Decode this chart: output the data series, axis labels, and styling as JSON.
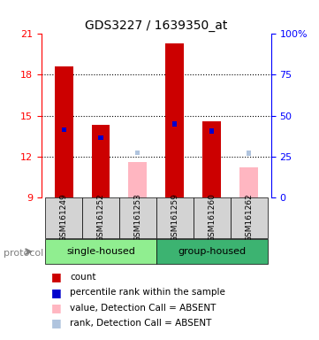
{
  "title": "GDS3227 / 1639350_at",
  "samples": [
    "GSM161249",
    "GSM161252",
    "GSM161253",
    "GSM161259",
    "GSM161260",
    "GSM161262"
  ],
  "groups": [
    {
      "name": "single-housed",
      "samples": [
        "GSM161249",
        "GSM161252",
        "GSM161253"
      ],
      "color": "#90EE90"
    },
    {
      "name": "group-housed",
      "samples": [
        "GSM161259",
        "GSM161260",
        "GSM161262"
      ],
      "color": "#3CB371"
    }
  ],
  "ylim_left": [
    9,
    21
  ],
  "ylim_right": [
    0,
    100
  ],
  "yticks_left": [
    9,
    12,
    15,
    18,
    21
  ],
  "yticks_right": [
    0,
    25,
    50,
    75,
    100
  ],
  "bar_data": [
    {
      "sample": "GSM161249",
      "value": 18.6,
      "rank": 13.8,
      "absent": false
    },
    {
      "sample": "GSM161252",
      "value": 14.35,
      "rank": 13.2,
      "absent": false
    },
    {
      "sample": "GSM161253",
      "value": 11.6,
      "rank": 12.1,
      "absent": true
    },
    {
      "sample": "GSM161259",
      "value": 20.3,
      "rank": 14.2,
      "absent": false
    },
    {
      "sample": "GSM161260",
      "value": 14.6,
      "rank": 13.7,
      "absent": false
    },
    {
      "sample": "GSM161262",
      "value": 11.2,
      "rank": 12.05,
      "absent": true
    }
  ],
  "bar_bottom": 9,
  "bar_width": 0.5,
  "color_present_value": "#CC0000",
  "color_present_rank": "#0000CC",
  "color_absent_value": "#FFB6C1",
  "color_absent_rank": "#B0C4DE",
  "legend_items": [
    {
      "color": "#CC0000",
      "label": "count",
      "marker": "s"
    },
    {
      "color": "#0000CC",
      "label": "percentile rank within the sample",
      "marker": "s"
    },
    {
      "color": "#FFB6C1",
      "label": "value, Detection Call = ABSENT",
      "marker": "s"
    },
    {
      "color": "#B0C4DE",
      "label": "rank, Detection Call = ABSENT",
      "marker": "s"
    }
  ],
  "protocol_label": "protocol",
  "background_color": "#ffffff",
  "plot_bg_color": "#ffffff",
  "grid_color": "#000000",
  "rank_bar_width": 0.12
}
